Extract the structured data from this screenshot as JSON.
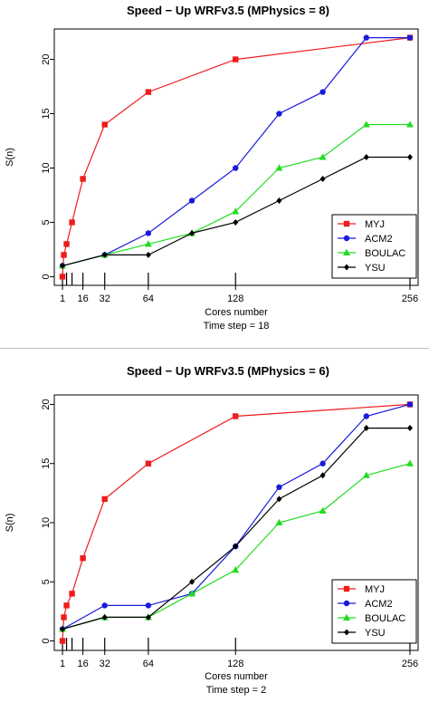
{
  "chart_data": [
    {
      "type": "line",
      "title": "Speed − Up WRFv3.5 (MPhysics = 8)",
      "xlabel": "Cores number",
      "subxlabel": "Time step = 18",
      "ylabel": "S(n)",
      "xlim": [
        -5,
        262
      ],
      "ylim": [
        -0.8,
        22.8
      ],
      "xticks": [
        1,
        16,
        32,
        64,
        128,
        256
      ],
      "xtick_labels": [
        "1",
        "16",
        "32",
        "64",
        "128",
        "256"
      ],
      "rug": [
        1,
        4,
        8,
        16,
        32,
        64,
        128,
        256
      ],
      "yticks": [
        0,
        5,
        10,
        15,
        20
      ],
      "grid": false,
      "legend_position": "bottom-right",
      "series": [
        {
          "name": "MYJ",
          "color": "#ee1c1c",
          "marker": "square",
          "x": [
            1,
            2,
            4,
            8,
            16,
            32,
            64,
            128,
            256
          ],
          "y": [
            0,
            2,
            3,
            5,
            9,
            14,
            17,
            20,
            22
          ]
        },
        {
          "name": "ACM2",
          "color": "#1a1adb",
          "marker": "circle",
          "x": [
            1,
            32,
            64,
            96,
            128,
            160,
            192,
            224,
            256
          ],
          "y": [
            1,
            2,
            4,
            7,
            10,
            15,
            17,
            22,
            22
          ]
        },
        {
          "name": "BOULAC",
          "color": "#22dd22",
          "marker": "triangle",
          "x": [
            1,
            32,
            64,
            96,
            128,
            160,
            192,
            224,
            256
          ],
          "y": [
            1,
            2,
            3,
            4,
            6,
            10,
            11,
            14,
            14
          ]
        },
        {
          "name": "YSU",
          "color": "#000000",
          "marker": "diamond",
          "x": [
            1,
            32,
            64,
            96,
            128,
            160,
            192,
            224,
            256
          ],
          "y": [
            1,
            2,
            2,
            4,
            5,
            7,
            9,
            11,
            11
          ]
        }
      ]
    },
    {
      "type": "line",
      "title": "Speed − Up WRFv3.5 (MPhysics = 6)",
      "xlabel": "Cores number",
      "subxlabel": "Time step = 2",
      "ylabel": "S(n)",
      "xlim": [
        -5,
        262
      ],
      "ylim": [
        -0.8,
        20.8
      ],
      "xticks": [
        1,
        16,
        32,
        64,
        128,
        256
      ],
      "xtick_labels": [
        "1",
        "16",
        "32",
        "64",
        "128",
        "256"
      ],
      "rug": [
        1,
        4,
        8,
        16,
        32,
        64,
        128,
        256
      ],
      "yticks": [
        0,
        5,
        10,
        15,
        20
      ],
      "grid": false,
      "legend_position": "bottom-right",
      "series": [
        {
          "name": "MYJ",
          "color": "#ee1c1c",
          "marker": "square",
          "x": [
            1,
            2,
            4,
            8,
            16,
            32,
            64,
            128,
            256
          ],
          "y": [
            0,
            2,
            3,
            4,
            7,
            12,
            15,
            19,
            20
          ]
        },
        {
          "name": "ACM2",
          "color": "#1a1adb",
          "marker": "circle",
          "x": [
            1,
            32,
            64,
            96,
            128,
            160,
            192,
            224,
            256
          ],
          "y": [
            1,
            3,
            3,
            4,
            8,
            13,
            15,
            19,
            20
          ]
        },
        {
          "name": "BOULAC",
          "color": "#22dd22",
          "marker": "triangle",
          "x": [
            1,
            32,
            64,
            96,
            128,
            160,
            192,
            224,
            256
          ],
          "y": [
            1,
            2,
            2,
            4,
            6,
            10,
            11,
            14,
            15
          ]
        },
        {
          "name": "YSU",
          "color": "#000000",
          "marker": "diamond",
          "x": [
            1,
            32,
            64,
            96,
            128,
            160,
            192,
            224,
            256
          ],
          "y": [
            1,
            2,
            2,
            5,
            8,
            12,
            14,
            18,
            18
          ]
        }
      ]
    }
  ]
}
